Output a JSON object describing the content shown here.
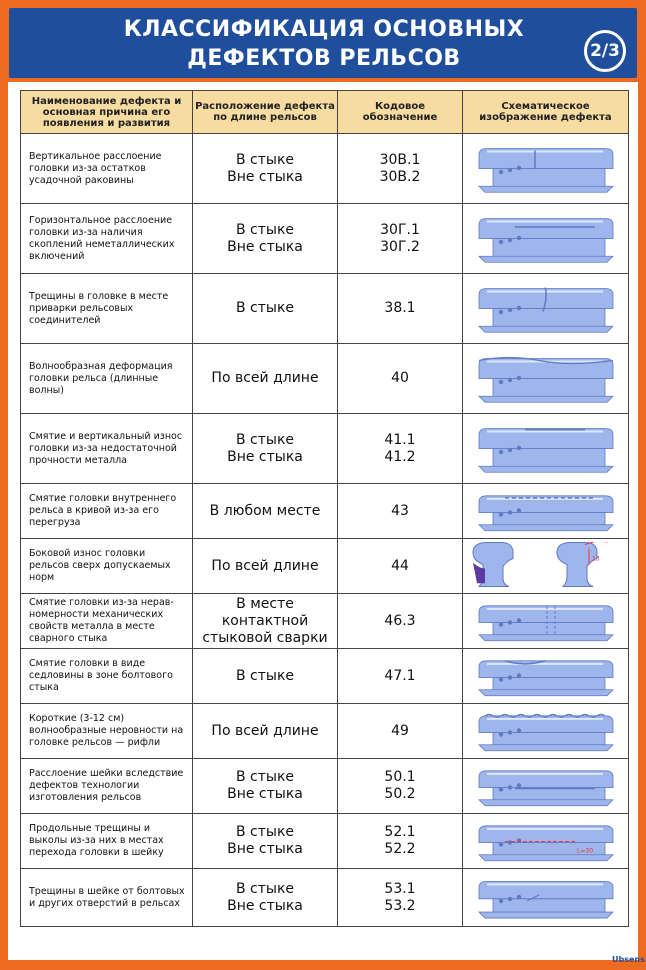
{
  "header": {
    "title_line1": "КЛАССИФИКАЦИЯ ОСНОВНЫХ",
    "title_line2": "ДЕФЕКТОВ РЕЛЬСОВ",
    "page_badge": "2/3"
  },
  "table": {
    "columns": [
      "Наименование дефекта и основная причина его появления и развития",
      "Расположение дефекта по длине рельсов",
      "Кодовое обозначение",
      "Схематическое изображение дефекта"
    ],
    "rows": [
      {
        "name": "Вертикальное расслоение головки из-за остатков усадочной раковины",
        "loc": [
          "В стыке",
          "Вне стыка"
        ],
        "code": [
          "30В.1",
          "30В.2"
        ],
        "icon": "rail-vertical-split-icon"
      },
      {
        "name": "Горизонтальное расслоение головки из-за наличия скоплений неметаллических включений",
        "loc": [
          "В стыке",
          "Вне стыка"
        ],
        "code": [
          "30Г.1",
          "30Г.2"
        ],
        "icon": "rail-horizontal-split-icon"
      },
      {
        "name": "Трещины в головке в месте приварки рельсовых соединителей",
        "loc": [
          "В стыке"
        ],
        "code": [
          "38.1"
        ],
        "icon": "rail-head-crack-icon"
      },
      {
        "name": "Волнообразная деформация головки рельса (длинные волны)",
        "loc": [
          "По всей длине"
        ],
        "code": [
          "40"
        ],
        "icon": "rail-long-wave-icon"
      },
      {
        "name": "Смятие и вертикальный износ головки из-за недостаточной прочности металла",
        "loc": [
          "В стыке",
          "Вне стыка"
        ],
        "code": [
          "41.1",
          "41.2"
        ],
        "icon": "rail-crushing-wear-icon"
      },
      {
        "name": "Смятие головки внутреннего рельса в кривой из-за его перегруза",
        "loc": [
          "В любом месте"
        ],
        "code": [
          "43"
        ],
        "icon": "rail-inner-curve-crush-icon"
      },
      {
        "name": "Боковой износ головки рельсов сверх допускаемых норм",
        "loc": [
          "По всей длине"
        ],
        "code": [
          "44"
        ],
        "icon": "rail-side-wear-profile-icon"
      },
      {
        "name": "Смятие головки из-за нерав-номерности механических свойств металла в месте сварного стыка",
        "loc": [
          "В месте контактной",
          "стыковой сварки"
        ],
        "code": [
          "46.3"
        ],
        "icon": "rail-weld-crush-icon"
      },
      {
        "name": "Смятие головки в виде седловины в зоне болтового стыка",
        "loc": [
          "В стыке"
        ],
        "code": [
          "47.1"
        ],
        "icon": "rail-saddle-icon"
      },
      {
        "name": "Короткие (3-12 см) волнообразные неровности на головке рельсов — рифли",
        "loc": [
          "По всей длине"
        ],
        "code": [
          "49"
        ],
        "icon": "rail-corrugation-icon"
      },
      {
        "name": "Расслоение шейки вследствие дефектов технологии изготовления рельсов",
        "loc": [
          "В стыке",
          "Вне стыка"
        ],
        "code": [
          "50.1",
          "50.2"
        ],
        "icon": "rail-web-split-icon"
      },
      {
        "name": "Продольные трещины и выколы из-за них в местах перехода головки в шейку",
        "loc": [
          "В стыке",
          "Вне стыка"
        ],
        "code": [
          "52.1",
          "52.2"
        ],
        "icon": "rail-longitudinal-crack-icon"
      },
      {
        "name": "Трещины в шейке от болтовых и других отверстий в рельсах",
        "loc": [
          "В стыке",
          "Вне стыка"
        ],
        "code": [
          "53.1",
          "53.2"
        ],
        "icon": "rail-bolthole-crack-icon"
      }
    ]
  },
  "side_wear_labels": [
    "45°",
    "13"
  ],
  "long_crack_label": "L=30",
  "footer": {
    "logo": "Ubsens"
  },
  "colors": {
    "banner": "#1f4e9c",
    "frame": "#ee6a1f",
    "header_fill": "#f7dca1",
    "rail_metal": "#9fb6ec"
  }
}
